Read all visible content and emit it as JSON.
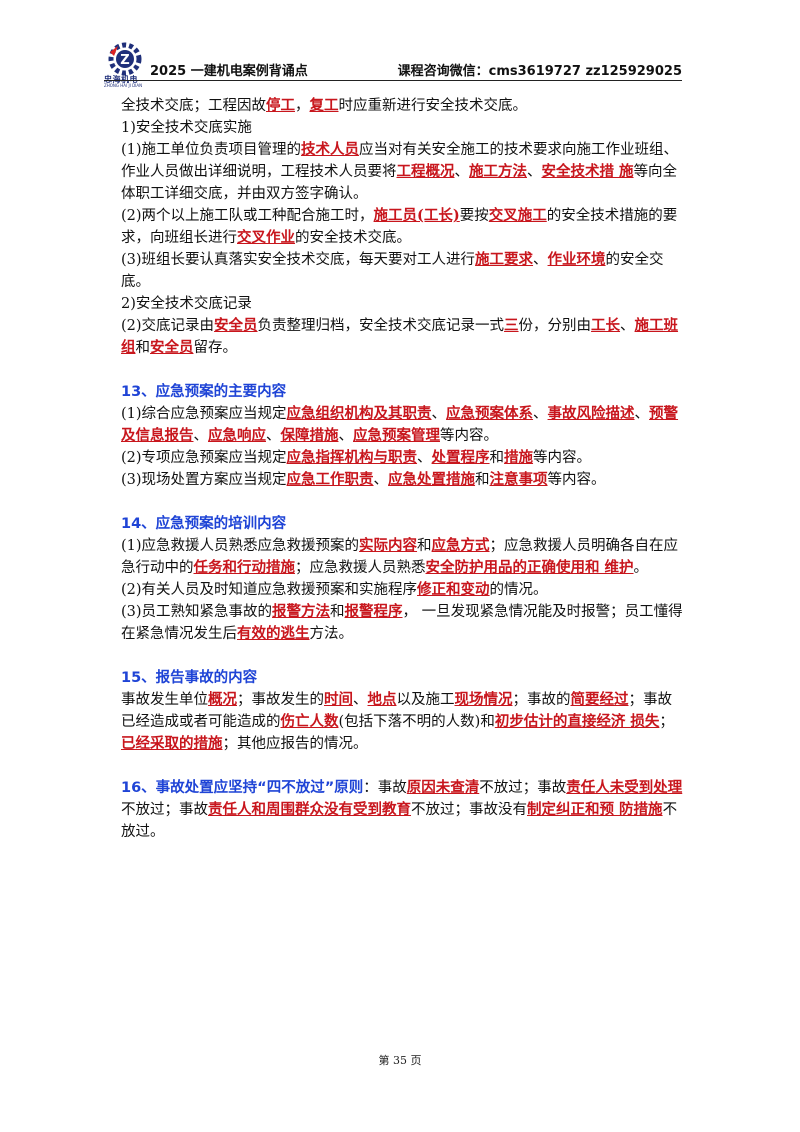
{
  "header": {
    "logo_text": "忠海机电",
    "logo_sub": "ZHONG HAI JI DIAN",
    "title": "2025 一建机电案例背诵点",
    "contact": "课程咨询微信：cms3619727   zz125929025"
  },
  "colors": {
    "keyword": "#c8161d",
    "section_title": "#1f44d6",
    "logo": "#1f2f7a"
  },
  "paragraphs": [
    [
      {
        "t": "全技术交底；工程因故"
      },
      {
        "t": "停工",
        "k": 1
      },
      {
        "t": "，"
      },
      {
        "t": "复工",
        "k": 1
      },
      {
        "t": "时应重新进行安全技术交底。"
      }
    ],
    [
      {
        "t": "1)安全技术交底实施"
      }
    ],
    [
      {
        "t": "(1)施工单位负责项目管理的"
      },
      {
        "t": "技术人员",
        "k": 1
      },
      {
        "t": "应当对有关安全施工的技术要求向施工作业班组、作业人员做出详细说明，工程技术人员要将"
      },
      {
        "t": "工程概况",
        "k": 1
      },
      {
        "t": "、"
      },
      {
        "t": "施工方法",
        "k": 1
      },
      {
        "t": "、"
      },
      {
        "t": "安全技术措  施",
        "k": 1
      },
      {
        "t": "等向全体职工详细交底，并由双方签字确认。"
      }
    ],
    [
      {
        "t": "(2)两个以上施工队或工种配合施工时，"
      },
      {
        "t": "施工员(工长)",
        "k": 1
      },
      {
        "t": "要按"
      },
      {
        "t": "交叉施工",
        "k": 1
      },
      {
        "t": "的安全技术措施的要求，向班组长进行"
      },
      {
        "t": "交叉作业",
        "k": 1
      },
      {
        "t": "的安全技术交底。"
      }
    ],
    [
      {
        "t": "(3)班组长要认真落实安全技术交底，每天要对工人进行"
      },
      {
        "t": "施工要求",
        "k": 1
      },
      {
        "t": "、"
      },
      {
        "t": "作业环境",
        "k": 1
      },
      {
        "t": "的安全交底。"
      }
    ],
    [
      {
        "t": "2)安全技术交底记录"
      }
    ],
    [
      {
        "t": "(2)交底记录由"
      },
      {
        "t": "安全员",
        "k": 1
      },
      {
        "t": "负责整理归档，安全技术交底记录一式"
      },
      {
        "t": "三",
        "k": 1
      },
      {
        "t": "份，分别由"
      },
      {
        "t": "工长",
        "k": 1
      },
      {
        "t": "、"
      },
      {
        "t": "施工班组",
        "k": 1
      },
      {
        "t": "和"
      },
      {
        "t": "安全员",
        "k": 1
      },
      {
        "t": "留存。"
      }
    ],
    "gap",
    [
      {
        "t": "13、应急预案的主要内容",
        "s": 1
      }
    ],
    [
      {
        "t": "(1)综合应急预案应当规定"
      },
      {
        "t": "应急组织机构及其职责",
        "k": 1
      },
      {
        "t": "、"
      },
      {
        "t": "应急预案体系",
        "k": 1
      },
      {
        "t": "、"
      },
      {
        "t": "事故风险描述",
        "k": 1
      },
      {
        "t": "、"
      },
      {
        "t": "预警及信息报告",
        "k": 1
      },
      {
        "t": "、"
      },
      {
        "t": "应急响应",
        "k": 1
      },
      {
        "t": "、"
      },
      {
        "t": "保障措施",
        "k": 1
      },
      {
        "t": "、"
      },
      {
        "t": "应急预案管理",
        "k": 1
      },
      {
        "t": "等内容。"
      }
    ],
    [
      {
        "t": "(2)专项应急预案应当规定"
      },
      {
        "t": "应急指挥机构与职责",
        "k": 1
      },
      {
        "t": "、"
      },
      {
        "t": "处置程序",
        "k": 1
      },
      {
        "t": "和"
      },
      {
        "t": "措施",
        "k": 1
      },
      {
        "t": "等内容。"
      }
    ],
    [
      {
        "t": "(3)现场处置方案应当规定"
      },
      {
        "t": "应急工作职责",
        "k": 1
      },
      {
        "t": "、"
      },
      {
        "t": "应急处置措施",
        "k": 1
      },
      {
        "t": "和"
      },
      {
        "t": "注意事项",
        "k": 1
      },
      {
        "t": "等内容。"
      }
    ],
    "gap",
    [
      {
        "t": "14、应急预案的培训内容",
        "s": 1
      }
    ],
    [
      {
        "t": "(1)应急救援人员熟悉应急救援预案的"
      },
      {
        "t": "实际内容",
        "k": 1
      },
      {
        "t": "和"
      },
      {
        "t": "应急方式",
        "k": 1
      },
      {
        "t": "；应急救援人员明确各自在应急行动中的"
      },
      {
        "t": "任务和行动措施",
        "k": 1
      },
      {
        "t": "；应急救援人员熟悉"
      },
      {
        "t": "安全防护用品的正确使用和  维护",
        "k": 1
      },
      {
        "t": "。"
      }
    ],
    [
      {
        "t": "(2)有关人员及时知道应急救援预案和实施程序"
      },
      {
        "t": "修正和变动",
        "k": 1
      },
      {
        "t": "的情况。"
      }
    ],
    [
      {
        "t": "(3)员工熟知紧急事故的"
      },
      {
        "t": "报警方法",
        "k": 1
      },
      {
        "t": "和"
      },
      {
        "t": "报警程序",
        "k": 1
      },
      {
        "t": "，  一旦发现紧急情况能及时报警；员工懂得在紧急情况发生后"
      },
      {
        "t": "有效的逃生",
        "k": 1
      },
      {
        "t": "方法。"
      }
    ],
    "gap",
    [
      {
        "t": "15、报告事故的内容",
        "s": 1
      }
    ],
    [
      {
        "t": "事故发生单位"
      },
      {
        "t": "概况",
        "k": 1
      },
      {
        "t": "；事故发生的"
      },
      {
        "t": "时间",
        "k": 1
      },
      {
        "t": "、"
      },
      {
        "t": "地点",
        "k": 1
      },
      {
        "t": "以及施工"
      },
      {
        "t": "现场情况",
        "k": 1
      },
      {
        "t": "；事故的"
      },
      {
        "t": "简要经过",
        "k": 1
      },
      {
        "t": "；事故已经造成或者可能造成的"
      },
      {
        "t": "伤亡人数",
        "k": 1
      },
      {
        "t": "(包括下落不明的人数)和"
      },
      {
        "t": "初步估计的直接经济  损失",
        "k": 1
      },
      {
        "t": "；"
      },
      {
        "t": "已经采取的措施",
        "k": 1
      },
      {
        "t": "；其他应报告的情况。"
      }
    ],
    "gap",
    [
      {
        "t": "16、事故处置应坚持“四不放过”原则",
        "s": 1
      },
      {
        "t": "：事故"
      },
      {
        "t": "原因未查清",
        "k": 1
      },
      {
        "t": "不放过；事故"
      },
      {
        "t": "责任人未受到处理",
        "k": 1
      },
      {
        "t": "不放过；事故"
      },
      {
        "t": "责任人和周围群众没有受到教育",
        "k": 1
      },
      {
        "t": "不放过；事故没有"
      },
      {
        "t": "制定纠正和预  防措施",
        "k": 1
      },
      {
        "t": "不放过。"
      }
    ]
  ],
  "footer": {
    "page_label": "第 35 页"
  }
}
